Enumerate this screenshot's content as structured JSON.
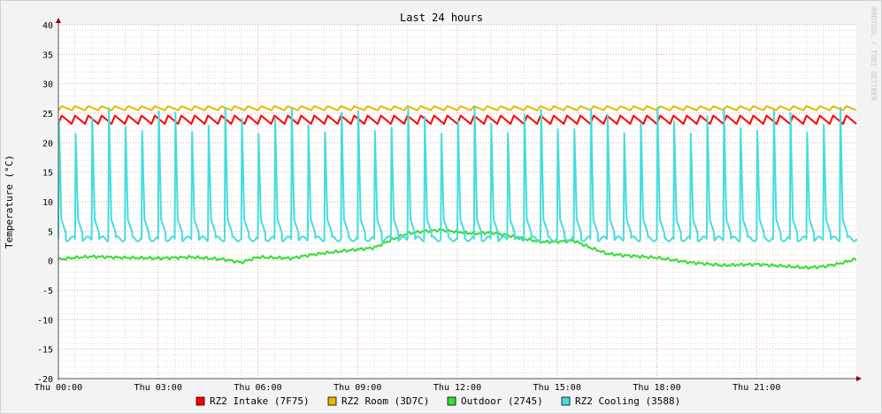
{
  "chart_data": {
    "type": "line",
    "title": "Last 24 hours",
    "ylabel": "Temperature (°C)",
    "watermark": "RRDTOOL / TOBI OETIKER",
    "ylim": [
      -20,
      40
    ],
    "y_ticks": [
      -20,
      -15,
      -10,
      -5,
      0,
      5,
      10,
      15,
      20,
      25,
      30,
      35,
      40
    ],
    "x_ticks": [
      "Thu 00:00",
      "Thu 03:00",
      "Thu 06:00",
      "Thu 09:00",
      "Thu 12:00",
      "Thu 15:00",
      "Thu 18:00",
      "Thu 21:00"
    ],
    "x_range_hours": [
      0,
      24
    ],
    "grid": true,
    "legend_position": "bottom",
    "series": [
      {
        "name": "RZ2 Intake (7F75)",
        "color": "#ff0000",
        "pattern": "oscillating",
        "low": 23.2,
        "high": 24.6,
        "period_h": 0.4
      },
      {
        "name": "RZ2 Room (3D7C)",
        "color": "#e8b800",
        "pattern": "oscillating",
        "low": 25.5,
        "high": 26.2,
        "period_h": 0.4
      },
      {
        "name": "Outdoor (2745)",
        "color": "#33dd33",
        "pattern": "smooth",
        "x": [
          0,
          0.5,
          1,
          2,
          3,
          4,
          5,
          5.5,
          6,
          7,
          7.5,
          8,
          8.5,
          9,
          9.5,
          10,
          10.5,
          11,
          11.5,
          12,
          12.5,
          13,
          13.5,
          14,
          14.5,
          15,
          15.5,
          16,
          16.5,
          17,
          18,
          19,
          20,
          21,
          22,
          22.5,
          23,
          23.5,
          24
        ],
        "values": [
          0.2,
          0.5,
          0.7,
          0.5,
          0.4,
          0.6,
          0.2,
          -0.3,
          0.6,
          0.4,
          0.9,
          1.3,
          1.6,
          1.9,
          2.2,
          3.5,
          4.6,
          5.0,
          5.2,
          4.9,
          4.6,
          4.8,
          4.3,
          3.7,
          3.2,
          3.2,
          3.4,
          2.2,
          1.2,
          0.9,
          0.5,
          -0.3,
          -0.8,
          -0.6,
          -1.0,
          -1.2,
          -1.0,
          -0.5,
          0.3
        ]
      },
      {
        "name": "RZ2 Cooling (3588)",
        "color": "#44dddd",
        "pattern": "spikes",
        "low": 3.7,
        "high": 26.0,
        "period_h": 0.5
      }
    ]
  }
}
